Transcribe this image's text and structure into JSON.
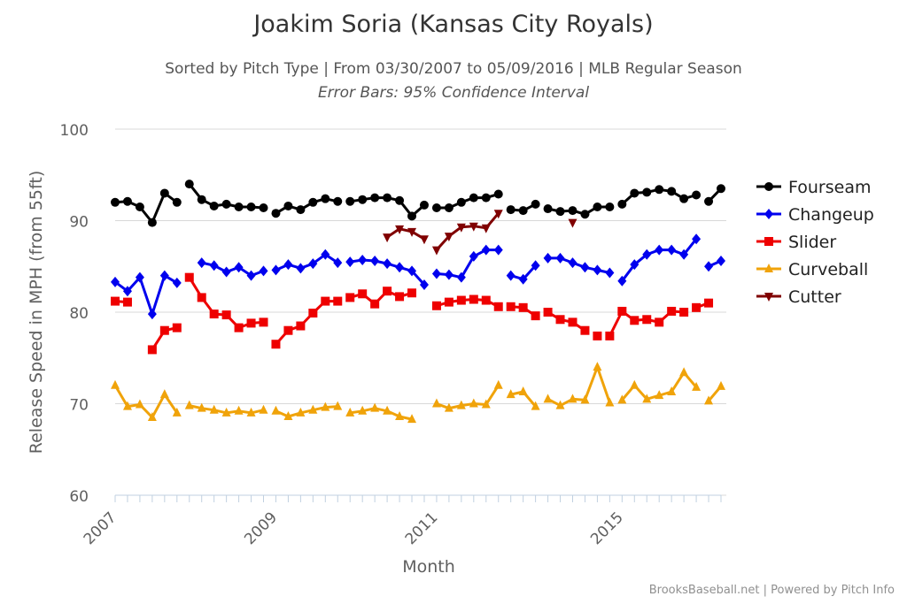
{
  "chart_data": {
    "type": "line",
    "title": "Joakim Soria (Kansas City Royals)",
    "subtitle": "Sorted by Pitch Type | From 03/30/2007 to 05/09/2016 | MLB Regular Season",
    "subtitle2": "Error Bars: 95% Confidence Interval",
    "xlabel": "Month",
    "ylabel": "Release Speed in MPH (from 55ft)",
    "ylim": [
      60,
      100
    ],
    "yticks": [
      60,
      70,
      80,
      90,
      100
    ],
    "xticks": [
      "2007",
      "2009",
      "2011",
      "2015"
    ],
    "grid": true,
    "legend_position": "right",
    "credits": "BrooksBaseball.net | Powered by Pitch Info",
    "series": [
      {
        "name": "Fourseam",
        "color": "#000000",
        "marker": "circle",
        "segments": [
          [
            [
              0,
              92.0
            ],
            [
              1,
              92.1
            ],
            [
              2,
              91.5
            ],
            [
              3,
              89.8
            ],
            [
              4,
              93.0
            ],
            [
              5,
              92.0
            ]
          ],
          [
            [
              6,
              94.0
            ],
            [
              7,
              92.3
            ],
            [
              8,
              91.6
            ],
            [
              9,
              91.8
            ],
            [
              10,
              91.5
            ],
            [
              11,
              91.5
            ],
            [
              12,
              91.4
            ]
          ],
          [
            [
              13,
              90.8
            ],
            [
              14,
              91.6
            ],
            [
              15,
              91.2
            ],
            [
              16,
              92.0
            ],
            [
              17,
              92.4
            ],
            [
              18,
              92.1
            ]
          ],
          [
            [
              19,
              92.1
            ],
            [
              20,
              92.3
            ],
            [
              21,
              92.5
            ],
            [
              22,
              92.5
            ],
            [
              23,
              92.2
            ],
            [
              24,
              90.5
            ],
            [
              25,
              91.7
            ]
          ],
          [
            [
              26,
              91.4
            ],
            [
              27,
              91.4
            ],
            [
              28,
              92.0
            ],
            [
              29,
              92.5
            ],
            [
              30,
              92.5
            ],
            [
              31,
              92.9
            ]
          ],
          [
            [
              32,
              91.2
            ],
            [
              33,
              91.1
            ],
            [
              34,
              91.8
            ]
          ],
          [
            [
              35,
              91.3
            ],
            [
              36,
              91.0
            ],
            [
              37,
              91.1
            ],
            [
              38,
              90.7
            ],
            [
              39,
              91.5
            ],
            [
              40,
              91.5
            ]
          ],
          [
            [
              41,
              91.8
            ],
            [
              42,
              93.0
            ],
            [
              43,
              93.1
            ],
            [
              44,
              93.4
            ],
            [
              45,
              93.2
            ],
            [
              46,
              92.4
            ],
            [
              47,
              92.8
            ]
          ],
          [
            [
              48,
              92.1
            ],
            [
              49,
              93.5
            ]
          ]
        ]
      },
      {
        "name": "Changeup",
        "color": "#0000ee",
        "marker": "diamond",
        "segments": [
          [
            [
              0,
              83.3
            ],
            [
              1,
              82.3
            ],
            [
              2,
              83.8
            ],
            [
              3,
              79.8
            ],
            [
              4,
              84.0
            ],
            [
              5,
              83.2
            ]
          ],
          [
            [
              7,
              85.4
            ],
            [
              8,
              85.1
            ],
            [
              9,
              84.4
            ],
            [
              10,
              84.9
            ],
            [
              11,
              84.0
            ],
            [
              12,
              84.5
            ]
          ],
          [
            [
              13,
              84.6
            ],
            [
              14,
              85.2
            ],
            [
              15,
              84.8
            ],
            [
              16,
              85.3
            ],
            [
              17,
              86.3
            ],
            [
              18,
              85.4
            ]
          ],
          [
            [
              19,
              85.5
            ],
            [
              20,
              85.7
            ],
            [
              21,
              85.6
            ],
            [
              22,
              85.3
            ],
            [
              23,
              84.9
            ],
            [
              24,
              84.5
            ],
            [
              25,
              83.0
            ]
          ],
          [
            [
              26,
              84.2
            ],
            [
              27,
              84.1
            ],
            [
              28,
              83.8
            ],
            [
              29,
              86.1
            ],
            [
              30,
              86.8
            ],
            [
              31,
              86.8
            ]
          ],
          [
            [
              32,
              84.0
            ],
            [
              33,
              83.6
            ],
            [
              34,
              85.1
            ]
          ],
          [
            [
              35,
              85.9
            ],
            [
              36,
              85.9
            ],
            [
              37,
              85.4
            ],
            [
              38,
              84.9
            ],
            [
              39,
              84.6
            ],
            [
              40,
              84.3
            ]
          ],
          [
            [
              41,
              83.4
            ],
            [
              42,
              85.2
            ],
            [
              43,
              86.3
            ],
            [
              44,
              86.8
            ],
            [
              45,
              86.8
            ],
            [
              46,
              86.3
            ],
            [
              47,
              88.0
            ]
          ],
          [
            [
              48,
              85.0
            ],
            [
              49,
              85.6
            ]
          ]
        ]
      },
      {
        "name": "Slider",
        "color": "#ee0000",
        "marker": "square",
        "segments": [
          [
            [
              0,
              81.2
            ],
            [
              1,
              81.1
            ]
          ],
          [
            [
              3,
              75.9
            ],
            [
              4,
              78.0
            ],
            [
              5,
              78.3
            ]
          ],
          [
            [
              6,
              83.8
            ],
            [
              7,
              81.6
            ],
            [
              8,
              79.8
            ],
            [
              9,
              79.7
            ],
            [
              10,
              78.3
            ],
            [
              11,
              78.8
            ],
            [
              12,
              78.9
            ]
          ],
          [
            [
              13,
              76.5
            ],
            [
              14,
              78.0
            ],
            [
              15,
              78.5
            ],
            [
              16,
              79.9
            ],
            [
              17,
              81.2
            ],
            [
              18,
              81.2
            ]
          ],
          [
            [
              19,
              81.6
            ],
            [
              20,
              82.0
            ],
            [
              21,
              80.9
            ],
            [
              22,
              82.3
            ],
            [
              23,
              81.7
            ],
            [
              24,
              82.1
            ]
          ],
          [
            [
              26,
              80.7
            ],
            [
              27,
              81.1
            ],
            [
              28,
              81.3
            ],
            [
              29,
              81.4
            ],
            [
              30,
              81.3
            ],
            [
              31,
              80.6
            ]
          ],
          [
            [
              32,
              80.6
            ],
            [
              33,
              80.5
            ],
            [
              34,
              79.6
            ]
          ],
          [
            [
              35,
              80.0
            ],
            [
              36,
              79.2
            ],
            [
              37,
              78.9
            ],
            [
              38,
              78.0
            ]
          ],
          [
            [
              39,
              77.4
            ]
          ],
          [
            [
              40,
              77.4
            ],
            [
              41,
              80.1
            ],
            [
              42,
              79.1
            ],
            [
              43,
              79.2
            ],
            [
              44,
              78.9
            ],
            [
              45,
              80.1
            ],
            [
              46,
              80.0
            ]
          ],
          [
            [
              47,
              80.5
            ],
            [
              48,
              81.0
            ]
          ]
        ]
      },
      {
        "name": "Curveball",
        "color": "#f0a30a",
        "marker": "triangle",
        "segments": [
          [
            [
              0,
              72.0
            ],
            [
              1,
              69.7
            ],
            [
              2,
              69.9
            ],
            [
              3,
              68.5
            ],
            [
              4,
              71.0
            ],
            [
              5,
              69.0
            ]
          ],
          [
            [
              6,
              69.8
            ],
            [
              7,
              69.5
            ],
            [
              8,
              69.3
            ],
            [
              9,
              69.0
            ],
            [
              10,
              69.2
            ],
            [
              11,
              69.0
            ],
            [
              12,
              69.3
            ]
          ],
          [
            [
              13,
              69.2
            ],
            [
              14,
              68.6
            ],
            [
              15,
              69.0
            ],
            [
              16,
              69.3
            ],
            [
              17,
              69.6
            ],
            [
              18,
              69.7
            ]
          ],
          [
            [
              19,
              69.0
            ],
            [
              20,
              69.2
            ],
            [
              21,
              69.5
            ],
            [
              22,
              69.2
            ],
            [
              23,
              68.6
            ],
            [
              24,
              68.3
            ]
          ],
          [
            [
              26,
              70.0
            ],
            [
              27,
              69.5
            ],
            [
              28,
              69.8
            ],
            [
              29,
              70.0
            ],
            [
              30,
              69.9
            ],
            [
              31,
              72.0
            ]
          ],
          [
            [
              32,
              71.0
            ],
            [
              33,
              71.3
            ],
            [
              34,
              69.7
            ]
          ],
          [
            [
              35,
              70.5
            ],
            [
              36,
              69.8
            ],
            [
              37,
              70.5
            ],
            [
              38,
              70.4
            ],
            [
              39,
              74.0
            ],
            [
              40,
              70.1
            ]
          ],
          [
            [
              41,
              70.4
            ],
            [
              42,
              72.0
            ],
            [
              43,
              70.5
            ],
            [
              44,
              70.9
            ],
            [
              45,
              71.3
            ],
            [
              46,
              73.4
            ],
            [
              47,
              71.8
            ]
          ],
          [
            [
              48,
              70.3
            ],
            [
              49,
              71.9
            ]
          ]
        ]
      },
      {
        "name": "Cutter",
        "color": "#800000",
        "marker": "triangle-down",
        "segments": [
          [
            [
              22,
              88.2
            ],
            [
              23,
              89.1
            ],
            [
              24,
              88.8
            ],
            [
              25,
              88.0
            ]
          ],
          [
            [
              26,
              86.8
            ],
            [
              27,
              88.3
            ],
            [
              28,
              89.3
            ],
            [
              29,
              89.4
            ],
            [
              30,
              89.2
            ],
            [
              31,
              90.8
            ]
          ],
          [
            [
              37,
              89.8
            ]
          ]
        ]
      }
    ]
  }
}
